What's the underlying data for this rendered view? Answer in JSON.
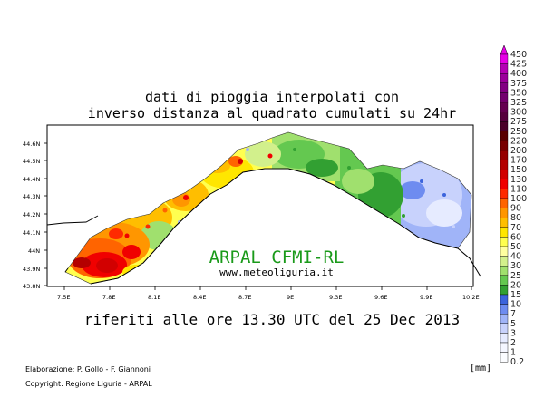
{
  "title_line1": "dati di pioggia interpolati con",
  "title_line2": "inverso distanza al quadrato cumulati su 24hr",
  "subtitle": "riferiti alle ore 13.30 UTC del 25 Dec 2013",
  "overlay": {
    "brand": "ARPAL CFMI-RL",
    "website": "www.meteoliguria.it",
    "brand_color": "#1a9a1a"
  },
  "credits": {
    "line1": "Elaborazione: P. Gollo - F. Giannoni",
    "line2": "Copyright: Regione Liguria - ARPAL"
  },
  "legend": {
    "unit": "[mm]",
    "levels": [
      {
        "label": "450",
        "color": "#e600e6"
      },
      {
        "label": "425",
        "color": "#b400b4"
      },
      {
        "label": "400",
        "color": "#9b009b"
      },
      {
        "label": "375",
        "color": "#820082"
      },
      {
        "label": "350",
        "color": "#73006e"
      },
      {
        "label": "325",
        "color": "#640050"
      },
      {
        "label": "300",
        "color": "#56003c"
      },
      {
        "label": "275",
        "color": "#4a0028"
      },
      {
        "label": "250",
        "color": "#5a0000"
      },
      {
        "label": "220",
        "color": "#780000"
      },
      {
        "label": "200",
        "color": "#960000"
      },
      {
        "label": "170",
        "color": "#b40000"
      },
      {
        "label": "150",
        "color": "#d20000"
      },
      {
        "label": "130",
        "color": "#f00000"
      },
      {
        "label": "110",
        "color": "#ff2a00"
      },
      {
        "label": "100",
        "color": "#ff6400"
      },
      {
        "label": "90",
        "color": "#ff9600"
      },
      {
        "label": "80",
        "color": "#ffbe00"
      },
      {
        "label": "70",
        "color": "#ffe600"
      },
      {
        "label": "60",
        "color": "#ffff50"
      },
      {
        "label": "50",
        "color": "#ffffa0"
      },
      {
        "label": "40",
        "color": "#d2f08c"
      },
      {
        "label": "30",
        "color": "#a0e06e"
      },
      {
        "label": "25",
        "color": "#64c850"
      },
      {
        "label": "20",
        "color": "#32a032"
      },
      {
        "label": "15",
        "color": "#3c64dc"
      },
      {
        "label": "10",
        "color": "#6e8cf0"
      },
      {
        "label": "7",
        "color": "#a0b4f8"
      },
      {
        "label": "5",
        "color": "#c8d2fc"
      },
      {
        "label": "3",
        "color": "#e6ebff"
      },
      {
        "label": "2",
        "color": "#f4f6ff"
      },
      {
        "label": "1",
        "color": "#fbfcff"
      },
      {
        "label": "0.2",
        "color": "#ffffff"
      }
    ]
  },
  "axes": {
    "lon_ticks": [
      "7.5E",
      "7.8E",
      "8.1E",
      "8.4E",
      "8.7E",
      "9E",
      "9.3E",
      "9.6E",
      "9.9E",
      "10.2E"
    ],
    "lat_ticks": [
      "44.6N",
      "44.5N",
      "44.4N",
      "44.3N",
      "44.2N",
      "44.1N",
      "44N",
      "43.9N",
      "43.8N"
    ]
  }
}
